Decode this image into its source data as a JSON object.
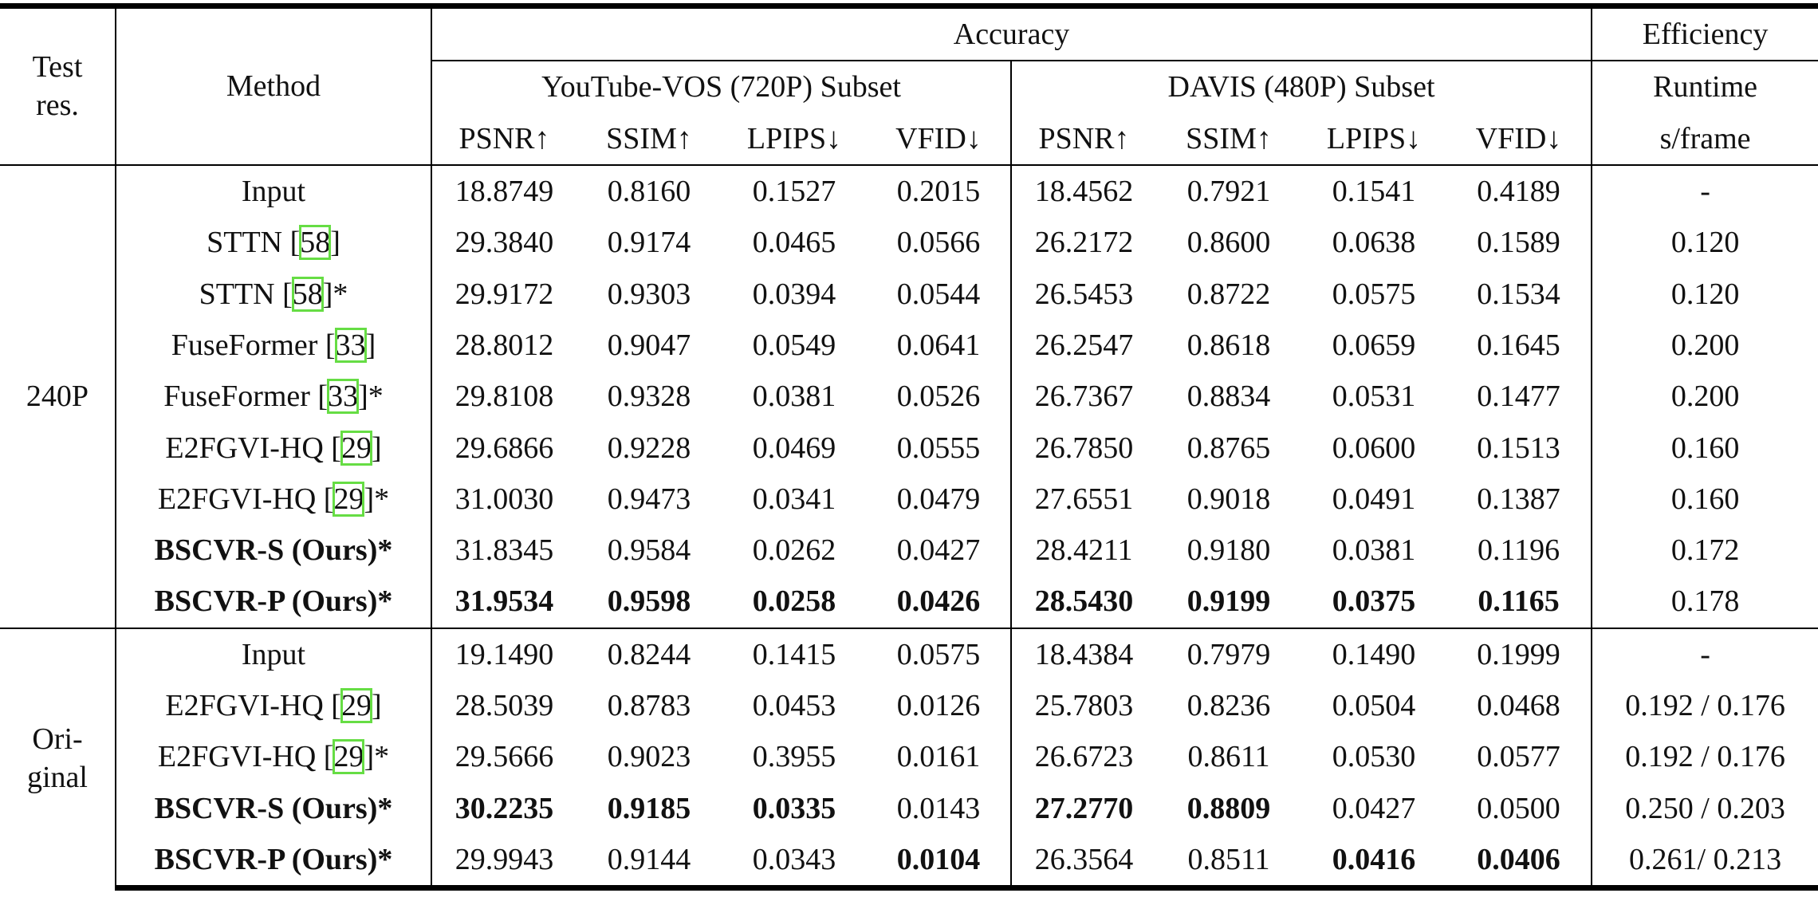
{
  "table": {
    "header": {
      "test_res": "Test res.",
      "method": "Method",
      "accuracy": "Accuracy",
      "efficiency": "Efficiency",
      "datasets": [
        "YouTube-VOS (720P) Subset",
        "DAVIS (480P) Subset"
      ],
      "runtime": "Runtime",
      "metrics": [
        "PSNR↑",
        "SSIM↑",
        "LPIPS↓",
        "VFID↓",
        "PSNR↑",
        "SSIM↑",
        "LPIPS↓",
        "VFID↓"
      ],
      "unit": "s/frame"
    },
    "groups": [
      {
        "label": "240P",
        "rows": [
          [
            "Input",
            "18.8749",
            "0.8160",
            "0.1527",
            "0.2015",
            "18.4562",
            "0.7921",
            "0.1541",
            "0.4189",
            "-"
          ],
          [
            "STTN [58]",
            "29.3840",
            "0.9174",
            "0.0465",
            "0.0566",
            "26.2172",
            "0.8600",
            "0.0638",
            "0.1589",
            "0.120"
          ],
          [
            "STTN [58]*",
            "29.9172",
            "0.9303",
            "0.0394",
            "0.0544",
            "26.5453",
            "0.8722",
            "0.0575",
            "0.1534",
            "0.120"
          ],
          [
            "FuseFormer [33]",
            "28.8012",
            "0.9047",
            "0.0549",
            "0.0641",
            "26.2547",
            "0.8618",
            "0.0659",
            "0.1645",
            "0.200"
          ],
          [
            "FuseFormer [33]*",
            "29.8108",
            "0.9328",
            "0.0381",
            "0.0526",
            "26.7367",
            "0.8834",
            "0.0531",
            "0.1477",
            "0.200"
          ],
          [
            "E2FGVI-HQ [29]",
            "29.6866",
            "0.9228",
            "0.0469",
            "0.0555",
            "26.7850",
            "0.8765",
            "0.0600",
            "0.1513",
            "0.160"
          ],
          [
            "E2FGVI-HQ [29]*",
            "31.0030",
            "0.9473",
            "0.0341",
            "0.0479",
            "27.6551",
            "0.9018",
            "0.0491",
            "0.1387",
            "0.160"
          ],
          [
            "BSCVR-S (Ours)*",
            "31.8345",
            "0.9584",
            "0.0262",
            "0.0427",
            "28.4211",
            "0.9180",
            "0.0381",
            "0.1196",
            "0.172"
          ],
          [
            "BSCVR-P (Ours)*",
            "31.9534",
            "0.9598",
            "0.0258",
            "0.0426",
            "28.5430",
            "0.9199",
            "0.0375",
            "0.1165",
            "0.178"
          ]
        ]
      },
      {
        "label": "Ori-ginal",
        "rows": [
          [
            "Input",
            "19.1490",
            "0.8244",
            "0.1415",
            "0.0575",
            "18.4384",
            "0.7979",
            "0.1490",
            "0.1999",
            "-"
          ],
          [
            "E2FGVI-HQ [29]",
            "28.5039",
            "0.8783",
            "0.0453",
            "0.0126",
            "25.7803",
            "0.8236",
            "0.0504",
            "0.0468",
            "0.192 / 0.176"
          ],
          [
            "E2FGVI-HQ [29]*",
            "29.5666",
            "0.9023",
            "0.3955",
            "0.0161",
            "26.6723",
            "0.8611",
            "0.0530",
            "0.0577",
            "0.192 / 0.176"
          ],
          [
            "BSCVR-S (Ours)*",
            "30.2235",
            "0.9185",
            "0.0335",
            "0.0143",
            "27.2770",
            "0.8809",
            "0.0427",
            "0.0500",
            "0.250 / 0.203"
          ],
          [
            "BSCVR-P (Ours)*",
            "29.9943",
            "0.9144",
            "0.0343",
            "0.0104",
            "26.3564",
            "0.8511",
            "0.0416",
            "0.0406",
            "0.261/ 0.213"
          ]
        ]
      }
    ]
  }
}
